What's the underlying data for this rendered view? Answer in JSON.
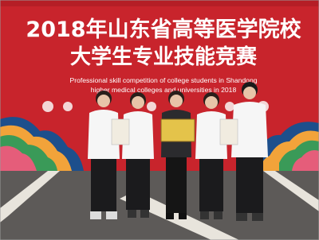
{
  "banner": {
    "title": "2018年山东省高等医学院校",
    "subtitle": "大学生专业技能竞赛",
    "english_line_1": "Professional skill competition of college students in Shandong",
    "english_line_2": "higher medical colleges and universities in 2018"
  }
}
